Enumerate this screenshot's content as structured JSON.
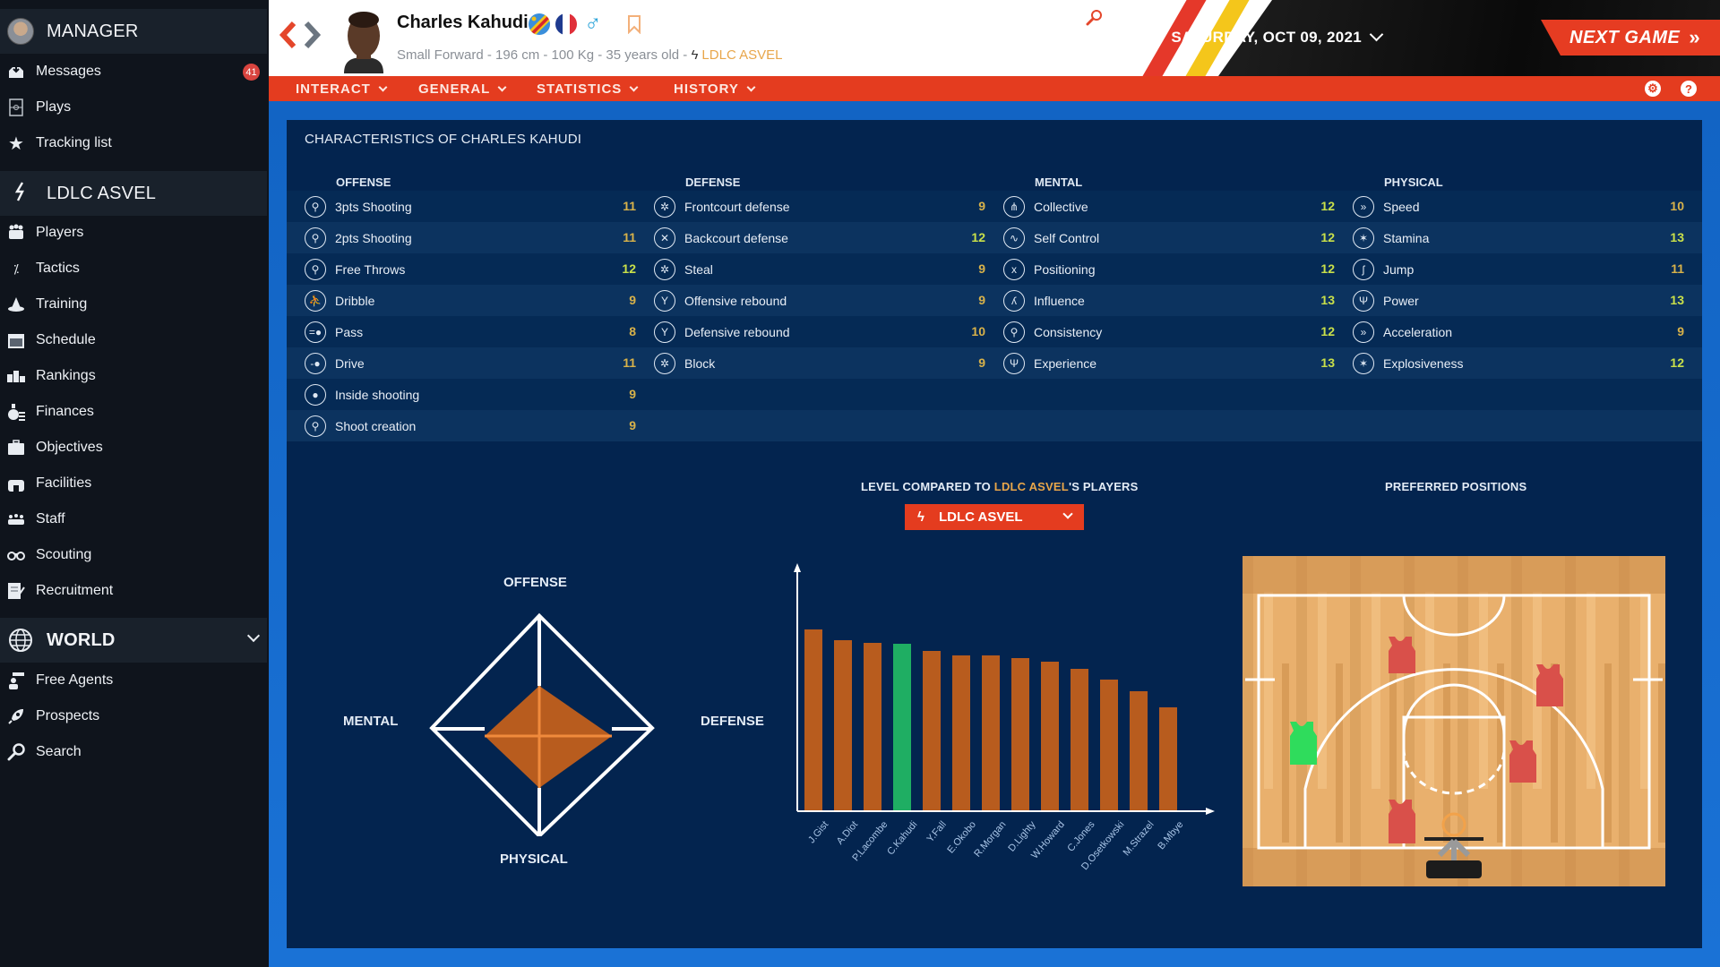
{
  "sidebar": {
    "manager": {
      "title": "MANAGER"
    },
    "manager_items": [
      {
        "label": "Messages",
        "icon": "inbox-icon",
        "badge": "41"
      },
      {
        "label": "Plays",
        "icon": "playbook-icon"
      },
      {
        "label": "Tracking list",
        "icon": "star-icon"
      }
    ],
    "team": {
      "title": "LDLC ASVEL"
    },
    "team_items": [
      {
        "label": "Players",
        "icon": "players-icon"
      },
      {
        "label": "Tactics",
        "icon": "tactics-icon"
      },
      {
        "label": "Training",
        "icon": "training-cone-icon"
      },
      {
        "label": "Schedule",
        "icon": "calendar-icon"
      },
      {
        "label": "Rankings",
        "icon": "podium-icon"
      },
      {
        "label": "Finances",
        "icon": "money-icon"
      },
      {
        "label": "Objectives",
        "icon": "briefcase-icon"
      },
      {
        "label": "Facilities",
        "icon": "arena-icon"
      },
      {
        "label": "Staff",
        "icon": "staff-icon"
      },
      {
        "label": "Scouting",
        "icon": "binoculars-icon"
      },
      {
        "label": "Recruitment",
        "icon": "contract-icon"
      }
    ],
    "world": {
      "title": "WORLD"
    },
    "world_items": [
      {
        "label": "Free Agents",
        "icon": "free-agent-icon"
      },
      {
        "label": "Prospects",
        "icon": "rocket-icon"
      },
      {
        "label": "Search",
        "icon": "magnifier-icon"
      }
    ]
  },
  "header": {
    "player_name": "Charles Kahudi",
    "player_meta": "Small Forward - 196 cm - 100 Kg - 35 years old -",
    "player_team": "LDLC ASVEL",
    "gender_symbol": "♂",
    "date": "SATURDAY, OCT 09, 2021",
    "next_game": "NEXT GAME",
    "next_game_arrow": "»"
  },
  "nav": {
    "tabs": [
      {
        "label": "INTERACT"
      },
      {
        "label": "GENERAL"
      },
      {
        "label": "STATISTICS"
      },
      {
        "label": "HISTORY"
      }
    ],
    "help": "?"
  },
  "characteristics": {
    "title": "CHARACTERISTICS OF CHARLES KAHUDI",
    "columns": [
      {
        "header": "OFFENSE",
        "stats": [
          {
            "label": "3pts Shooting",
            "value": "11"
          },
          {
            "label": "2pts Shooting",
            "value": "11"
          },
          {
            "label": "Free Throws",
            "value": "12"
          },
          {
            "label": "Dribble",
            "value": "9"
          },
          {
            "label": "Pass",
            "value": "8"
          },
          {
            "label": "Drive",
            "value": "11"
          },
          {
            "label": "Inside shooting",
            "value": "9"
          },
          {
            "label": "Shoot creation",
            "value": "9"
          }
        ]
      },
      {
        "header": "DEFENSE",
        "stats": [
          {
            "label": "Frontcourt defense",
            "value": "9"
          },
          {
            "label": "Backcourt defense",
            "value": "12"
          },
          {
            "label": "Steal",
            "value": "9"
          },
          {
            "label": "Offensive rebound",
            "value": "9"
          },
          {
            "label": "Defensive rebound",
            "value": "10"
          },
          {
            "label": "Block",
            "value": "9"
          }
        ]
      },
      {
        "header": "MENTAL",
        "stats": [
          {
            "label": "Collective",
            "value": "12"
          },
          {
            "label": "Self Control",
            "value": "12"
          },
          {
            "label": "Positioning",
            "value": "12"
          },
          {
            "label": "Influence",
            "value": "13"
          },
          {
            "label": "Consistency",
            "value": "12"
          },
          {
            "label": "Experience",
            "value": "13"
          }
        ]
      },
      {
        "header": "PHYSICAL",
        "stats": [
          {
            "label": "Speed",
            "value": "10"
          },
          {
            "label": "Stamina",
            "value": "13"
          },
          {
            "label": "Jump",
            "value": "11"
          },
          {
            "label": "Power",
            "value": "13"
          },
          {
            "label": "Acceleration",
            "value": "9"
          },
          {
            "label": "Explosiveness",
            "value": "12"
          }
        ]
      }
    ],
    "value_colors": {
      "high": "#c9e04a",
      "normal": "#d8b24a"
    }
  },
  "radar": {
    "labels": {
      "top": "OFFENSE",
      "right": "DEFENSE",
      "bottom": "PHYSICAL",
      "left": "MENTAL"
    }
  },
  "comparison": {
    "title_prefix": "LEVEL COMPARED TO ",
    "title_team": "LDLC ASVEL",
    "title_suffix": "'S PLAYERS",
    "selected_team": "LDLC ASVEL"
  },
  "positions": {
    "title": "PREFERRED POSITIONS"
  },
  "colors": {
    "accent": "#e43c1f",
    "panel": "#03244f",
    "bar": "#b85c1e",
    "bar_highlight": "#1fae63",
    "team_highlight": "#e8a64a"
  },
  "chart_data": [
    {
      "type": "radar",
      "title": "",
      "axes": [
        "OFFENSE",
        "DEFENSE",
        "PHYSICAL",
        "MENTAL"
      ],
      "values": [
        0.55,
        0.55,
        0.55,
        0.55
      ],
      "range": [
        0,
        1
      ]
    },
    {
      "type": "bar",
      "title": "LEVEL COMPARED TO LDLC ASVEL'S PLAYERS",
      "categories": [
        "J.Gist",
        "A.Diot",
        "P.Lacombe",
        "C.Kahudi",
        "Y.Fall",
        "E.Okobo",
        "R.Morgan",
        "D.Lighty",
        "W.Howard",
        "C.Jones",
        "D.Osetkowski",
        "M.Strazel",
        "B.Mbye"
      ],
      "values": [
        202,
        190,
        187,
        186,
        178,
        173,
        173,
        170,
        166,
        158,
        146,
        133,
        115
      ],
      "highlight": "C.Kahudi",
      "xlabel": "",
      "ylabel": "",
      "ylim": [
        0,
        270
      ],
      "grid": false
    }
  ]
}
